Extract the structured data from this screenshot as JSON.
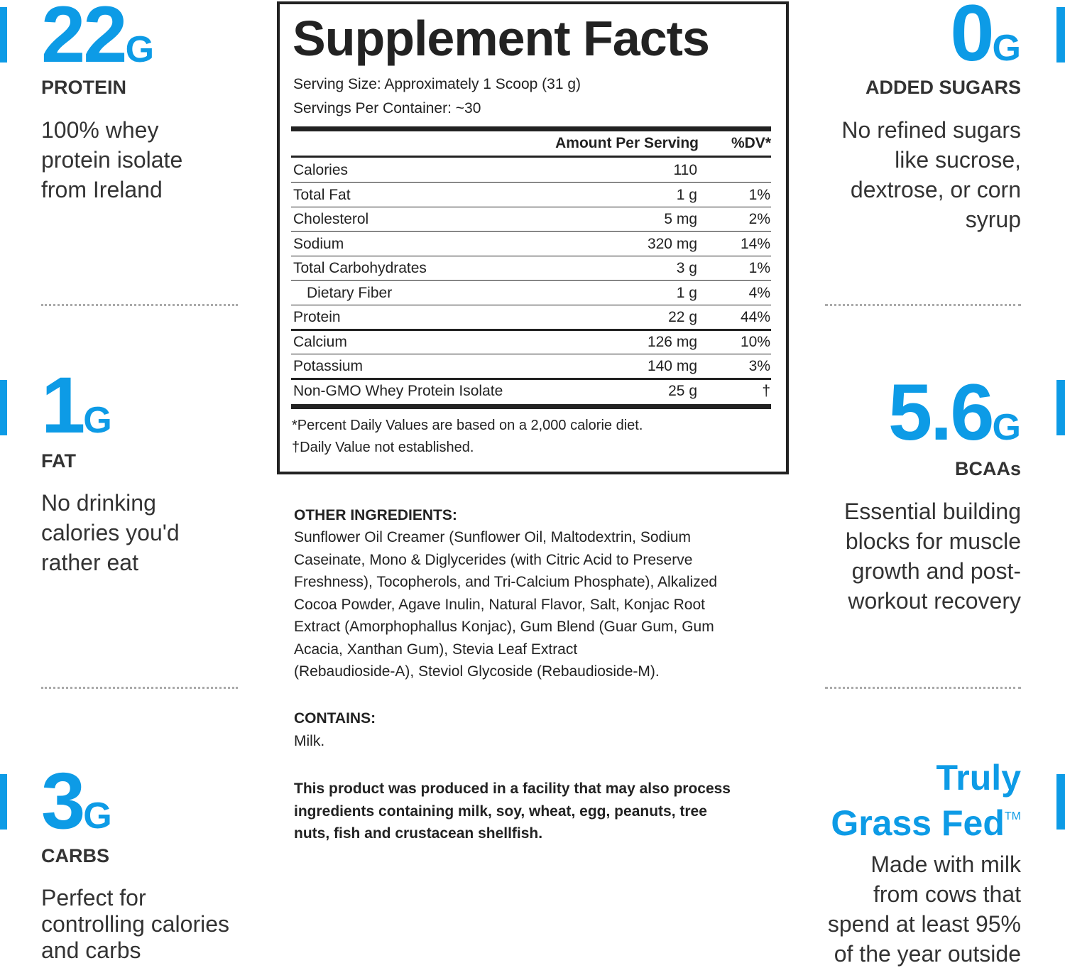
{
  "left": [
    {
      "number": "22",
      "unit": "G",
      "label": "PROTEIN",
      "description": [
        "100% whey",
        "protein isolate",
        "from Ireland"
      ]
    },
    {
      "number": "1",
      "unit": "G",
      "label": "FAT",
      "description": [
        "No drinking",
        "calories you'd",
        "rather eat"
      ]
    },
    {
      "number": "3",
      "unit": "G",
      "label": "CARBS",
      "description": [
        "Perfect for",
        "controlling calories",
        "and carbs"
      ]
    }
  ],
  "right": [
    {
      "number": "0",
      "unit": "G",
      "label": "ADDED SUGARS",
      "description": [
        "No refined sugars",
        "like sucrose,",
        "dextrose, or corn",
        "syrup"
      ]
    },
    {
      "number": "5.6",
      "unit": "G",
      "label": "BCAAs",
      "description": [
        "Essential building",
        "blocks for muscle",
        "growth and post-",
        "workout recovery"
      ]
    },
    {
      "title_lines": [
        "Truly",
        "Grass Fed"
      ],
      "trademark": "TM",
      "description": [
        "Made with milk",
        "from cows that",
        "spend at least 95%",
        "of the year outside"
      ]
    }
  ],
  "supplement_facts": {
    "title": "Supplement Facts",
    "serving_size": "Serving Size: Approximately 1 Scoop (31 g)",
    "servings": "Servings Per Container: ~30",
    "columns": [
      "Amount Per Serving",
      "%DV*"
    ],
    "rows": [
      {
        "name": "Calories",
        "amount": "110"
      },
      {
        "name": "Total Fat",
        "amount": "1 g",
        "dv": "1%"
      },
      {
        "name": "Cholesterol",
        "amount": "5 mg",
        "dv": "2%"
      },
      {
        "name": "Sodium",
        "amount": "320 mg",
        "dv": "14%"
      },
      {
        "name": "Total Carbohydrates",
        "amount": "3 g",
        "dv": "1%"
      },
      {
        "name": "Dietary Fiber",
        "amount": "1 g",
        "dv": "4%"
      },
      {
        "name": "Protein",
        "amount": "22 g",
        "dv": "44%"
      },
      {
        "name": "Calcium",
        "amount": "126 mg",
        "dv": "10%"
      },
      {
        "name": "Potassium",
        "amount": "140 mg",
        "dv": "3%"
      },
      {
        "name": "Non-GMO Whey Protein Isolate",
        "amount": "25 g",
        "dv": "†"
      }
    ],
    "footnotes": [
      "*Percent Daily Values are based on a 2,000 calorie diet.",
      "†Daily Value not established."
    ]
  },
  "ingredients": {
    "other_heading": "OTHER INGREDIENTS:",
    "other_lines": [
      "Sunflower Oil Creamer (Sunflower Oil, Maltodextrin, Sodium",
      "Caseinate, Mono & Diglycerides (with Citric Acid to Preserve",
      "Freshness), Tocopherols, and Tri-Calcium Phosphate), Alkalized",
      "Cocoa Powder, Agave Inulin, Natural Flavor, Salt, Konjac Root",
      "Extract (Amorphophallus Konjac), Gum Blend (Guar Gum, Gum",
      "Acacia, Xanthan Gum), Stevia Leaf Extract",
      "(Rebaudioside-A), Steviol Glycoside (Rebaudioside-M)."
    ],
    "contains_heading": "CONTAINS:",
    "contains": "Milk.",
    "allergen_lines": [
      "This product was produced in a facility that may also process",
      "ingredients containing milk, soy, wheat, egg, peanuts, tree",
      "nuts, fish and crustacean shellfish."
    ]
  }
}
